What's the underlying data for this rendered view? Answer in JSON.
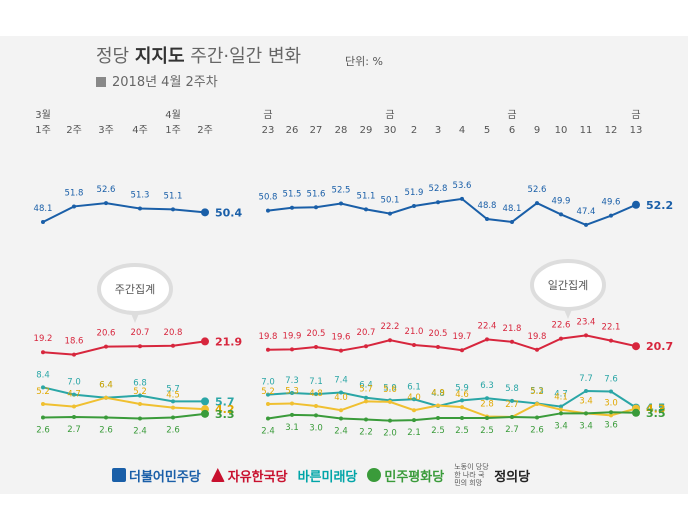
{
  "title": {
    "prefix": "정당",
    "bold": "지지도",
    "suffix": "주간·일간 변화"
  },
  "unit": "단위: %",
  "subtitle": "2018년 4월 2주차",
  "callouts": {
    "weekly": "주간집계",
    "daily": "일간집계"
  },
  "legend": [
    {
      "label": "더불어민주당",
      "color": "#1a5fa8"
    },
    {
      "label": "자유한국당",
      "color": "#c8102e"
    },
    {
      "label": "바른미래당",
      "color": "#00a5a8"
    },
    {
      "label": "민주평화당",
      "color": "#3a9b3a"
    },
    {
      "label": "정의당",
      "color": "#f5b800",
      "small": "노동이 당당한 나라 국민의 희망"
    }
  ],
  "chart_data": {
    "type": "line",
    "weekly": {
      "months": [
        "3월",
        "",
        "",
        "",
        "4월",
        ""
      ],
      "weeks": [
        "1주",
        "2주",
        "3주",
        "4주",
        "1주",
        "2주"
      ],
      "series": [
        {
          "name": "더불어민주당",
          "color": "#1a5fa8",
          "values": [
            48.1,
            51.8,
            52.6,
            51.3,
            51.1,
            50.4
          ]
        },
        {
          "name": "자유한국당",
          "color": "#d7263d",
          "values": [
            19.2,
            18.6,
            20.6,
            20.7,
            20.8,
            21.9
          ]
        },
        {
          "name": "바른미래당",
          "color": "#2aa6a6",
          "values": [
            8.4,
            7.0,
            6.4,
            6.8,
            5.7,
            5.7
          ]
        },
        {
          "name": "정의당",
          "color": "#f0c030",
          "values": [
            5.2,
            4.7,
            6.4,
            5.2,
            4.5,
            4.2
          ]
        },
        {
          "name": "민주평화당",
          "color": "#3a9b3a",
          "values": [
            2.6,
            2.7,
            2.6,
            2.4,
            2.6,
            3.3
          ]
        }
      ]
    },
    "daily": {
      "weekday": [
        "금",
        "",
        "",
        "",
        "",
        "금",
        "",
        "",
        "",
        "",
        "금",
        "",
        "",
        "",
        "",
        "금"
      ],
      "days": [
        "23",
        "26",
        "27",
        "28",
        "29",
        "30",
        "2",
        "3",
        "4",
        "5",
        "6",
        "9",
        "10",
        "11",
        "12",
        "13"
      ],
      "series": [
        {
          "name": "더불어민주당",
          "color": "#1a5fa8",
          "values": [
            50.8,
            51.5,
            51.6,
            52.5,
            51.1,
            50.1,
            51.9,
            52.8,
            53.6,
            48.8,
            48.1,
            52.6,
            49.9,
            47.4,
            49.6,
            52.2
          ]
        },
        {
          "name": "자유한국당",
          "color": "#d7263d",
          "values": [
            19.8,
            19.9,
            20.5,
            19.6,
            20.7,
            22.2,
            21.0,
            20.5,
            19.7,
            22.4,
            21.8,
            19.8,
            22.6,
            23.4,
            22.1,
            20.7
          ]
        },
        {
          "name": "바른미래당",
          "color": "#2aa6a6",
          "values": [
            7.0,
            7.3,
            7.1,
            7.4,
            6.4,
            5.9,
            6.1,
            4.8,
            5.9,
            6.3,
            5.8,
            5.3,
            4.7,
            7.7,
            7.6,
            4.5
          ]
        },
        {
          "name": "정의당",
          "color": "#f0c030",
          "values": [
            5.2,
            5.3,
            4.8,
            4.0,
            5.7,
            5.6,
            4.0,
            4.9,
            4.6,
            2.8,
            2.7,
            5.2,
            4.1,
            3.4,
            3.0,
            4.3
          ]
        },
        {
          "name": "민주평화당",
          "color": "#3a9b3a",
          "values": [
            2.4,
            3.1,
            3.0,
            2.4,
            2.2,
            2.0,
            2.1,
            2.5,
            2.5,
            2.5,
            2.7,
            2.6,
            3.4,
            3.4,
            3.6,
            3.5
          ]
        }
      ]
    }
  }
}
